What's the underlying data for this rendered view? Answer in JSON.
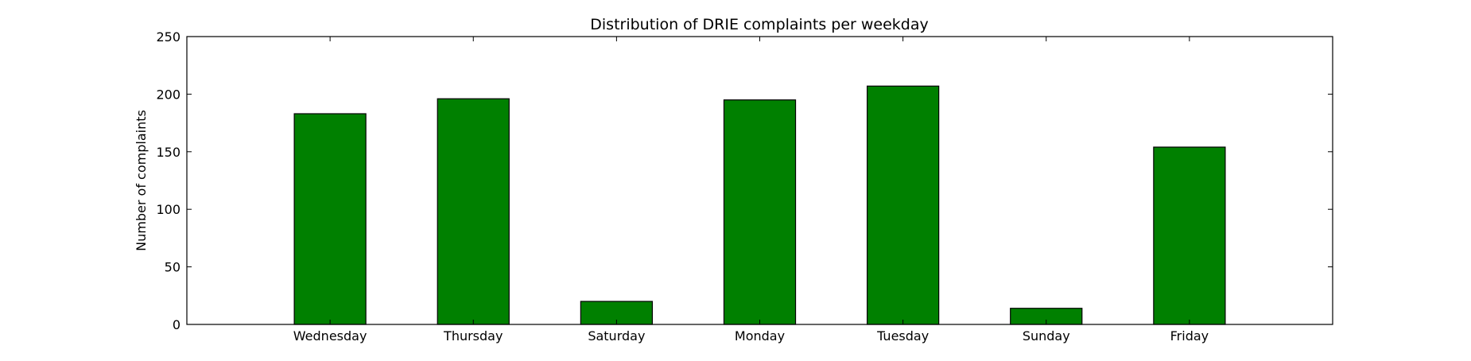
{
  "chart_data": {
    "type": "bar",
    "title": "Distribution of  DRIE complaints per weekday",
    "xlabel": "",
    "ylabel": "Number of complaints",
    "categories": [
      "Wednesday",
      "Thursday",
      "Saturday",
      "Monday",
      "Tuesday",
      "Sunday",
      "Friday"
    ],
    "values": [
      183,
      196,
      20,
      195,
      207,
      14,
      154
    ],
    "ylim": [
      0,
      250
    ],
    "yticks": [
      0,
      50,
      100,
      150,
      200,
      250
    ],
    "grid": false,
    "legend": "none",
    "colors": {
      "bar_fill": "#008000",
      "bar_edge": "#000000",
      "axes": "#000000",
      "background": "#ffffff"
    }
  }
}
